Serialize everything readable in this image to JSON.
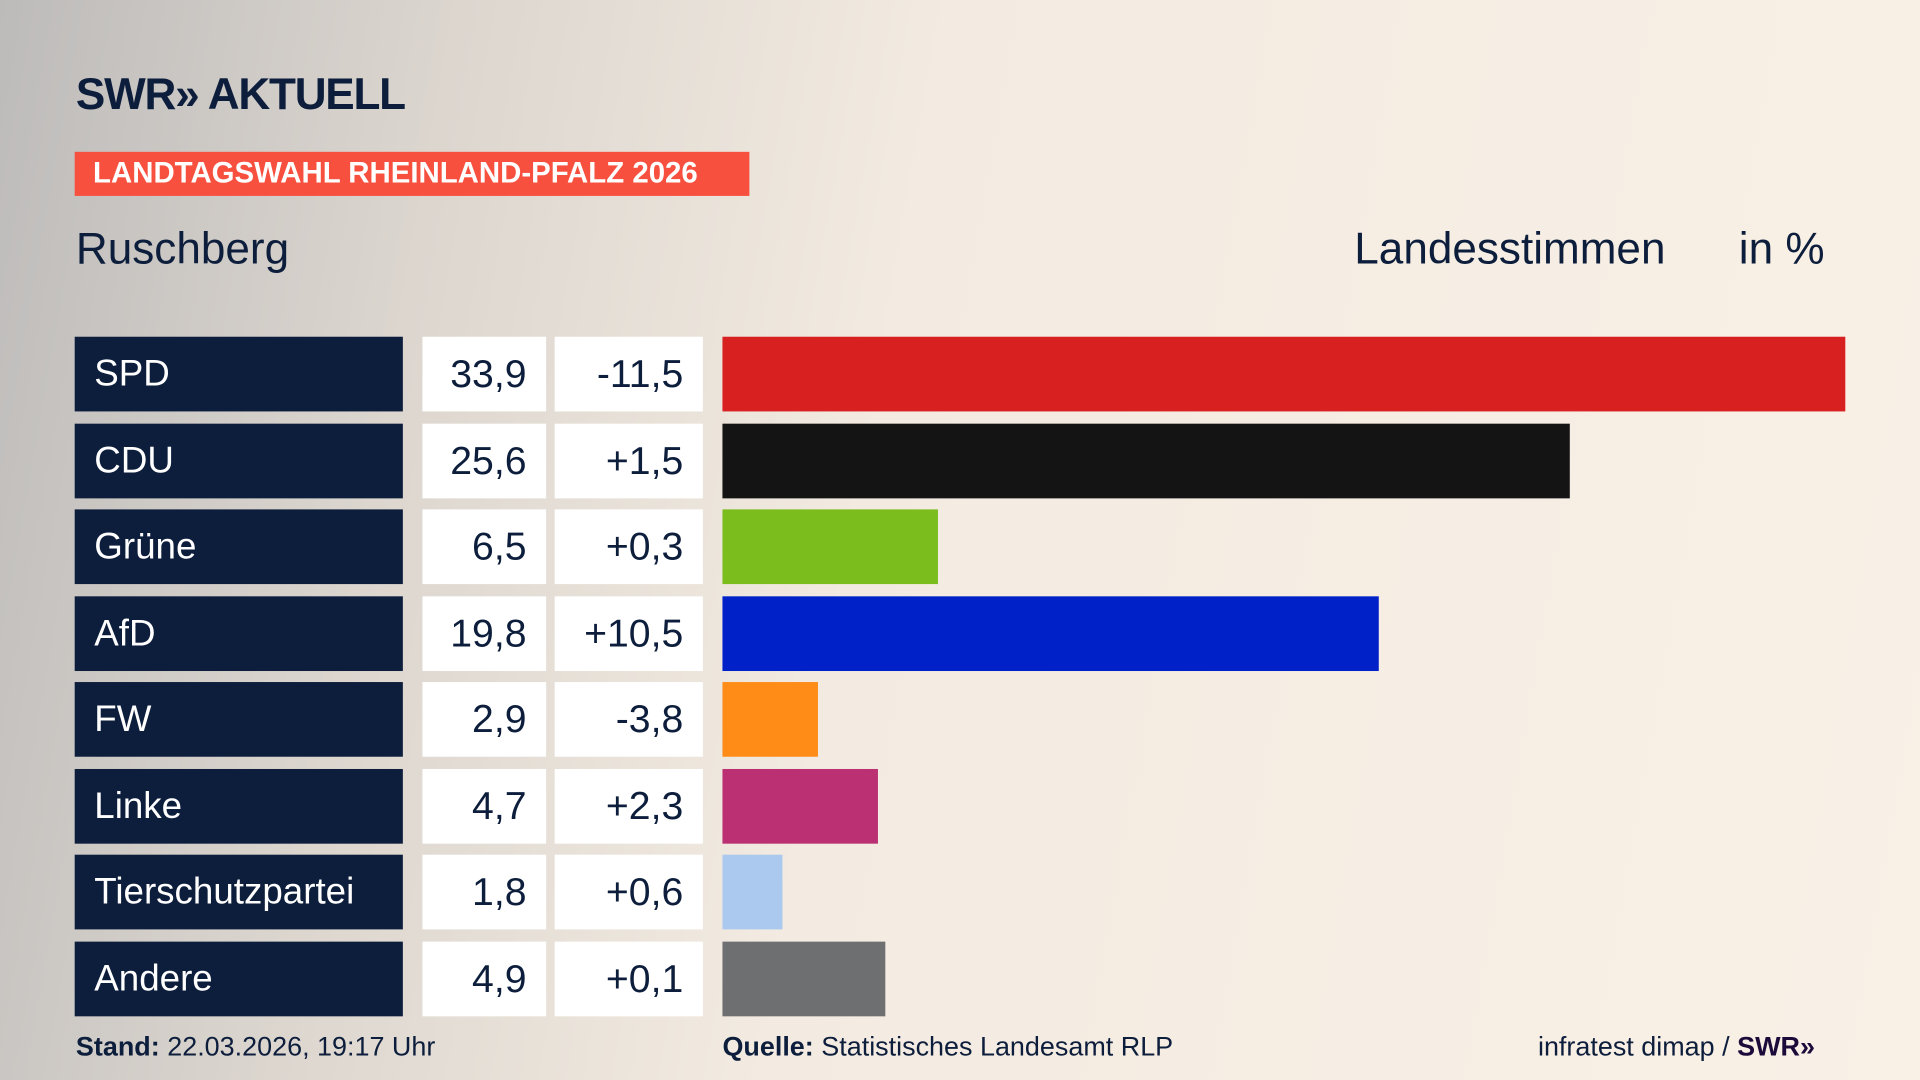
{
  "logo": "SWR» AKTUELL",
  "banner": "LANDTAGSWAHL RHEINLAND-PFALZ 2026",
  "location": "Ruschberg",
  "header_measure": "Landesstimmen",
  "header_unit": "in %",
  "chart_data": {
    "type": "bar",
    "orientation": "horizontal",
    "categories": [
      "SPD",
      "CDU",
      "Grüne",
      "AfD",
      "FW",
      "Linke",
      "Tierschutzpartei",
      "Andere"
    ],
    "values": [
      33.9,
      25.6,
      6.5,
      19.8,
      2.9,
      4.7,
      1.8,
      4.9
    ],
    "value_labels": [
      "33,9",
      "25,6",
      "6,5",
      "19,8",
      "2,9",
      "4,7",
      "1,8",
      "4,9"
    ],
    "change_labels": [
      "-11,5",
      "+1,5",
      "+0,3",
      "+10,5",
      "-3,8",
      "+2,3",
      "+0,6",
      "+0,1"
    ],
    "colors": [
      "#d82020",
      "#141414",
      "#7abd1c",
      "#0021c8",
      "#ff8c17",
      "#bb3073",
      "#abc9ef",
      "#6e6f71"
    ],
    "xlim": [
      0,
      33.9
    ]
  },
  "footer": {
    "stand_label": "Stand:",
    "stand_value": "22.03.2026, 19:17 Uhr",
    "source_label": "Quelle:",
    "source_value": "Statistisches Landesamt RLP",
    "credit": "infratest dimap /",
    "credit_logo": "SWR»"
  }
}
